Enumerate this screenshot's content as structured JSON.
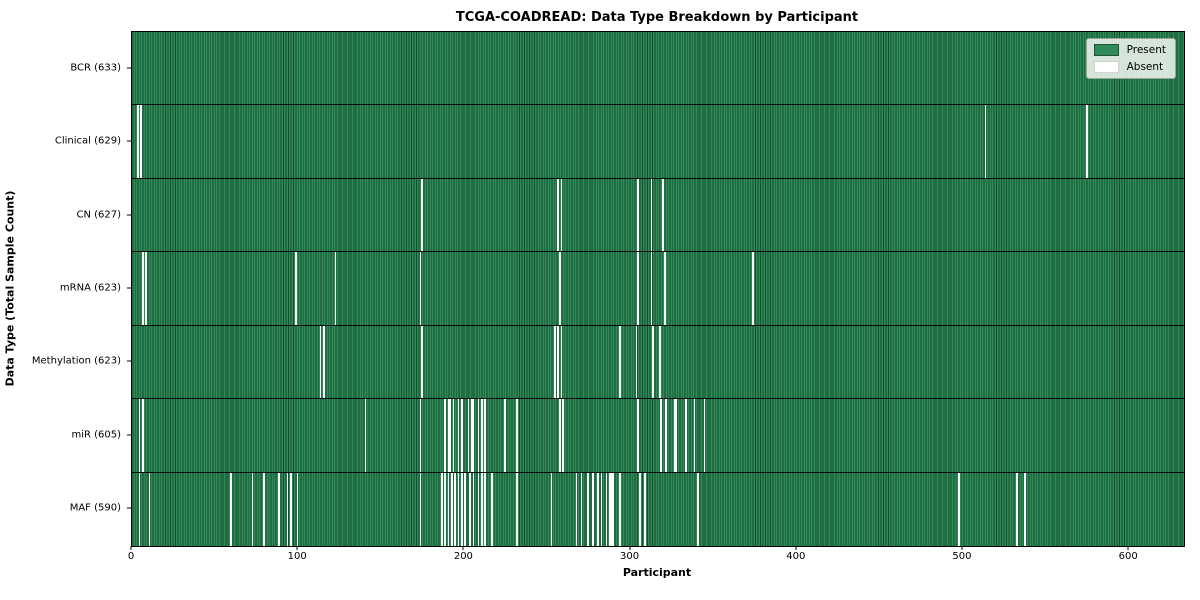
{
  "chart_data": {
    "type": "heatmap",
    "title": "TCGA-COADREAD: Data Type Breakdown by Participant",
    "xlabel": "Participant",
    "ylabel": "Data Type (Total Sample Count)",
    "n_participants": 633,
    "x_ticks": [
      0,
      100,
      200,
      300,
      400,
      500,
      600
    ],
    "grid": false,
    "legend": {
      "position": "upper right",
      "present_label": "Present",
      "absent_label": "Absent"
    },
    "colors": {
      "present": "#2E8B57",
      "absent": "#FFFFFF",
      "cell_edge": "#0A2616"
    },
    "rows": [
      {
        "name": "BCR",
        "label": "BCR (633)",
        "total_samples": 633,
        "absent_participants": []
      },
      {
        "name": "Clinical",
        "label": "Clinical (629)",
        "total_samples": 629,
        "absent_participants": [
          3,
          5,
          513,
          574
        ]
      },
      {
        "name": "CN",
        "label": "CN (627)",
        "total_samples": 627,
        "absent_participants": [
          174,
          256,
          258,
          304,
          312,
          319
        ]
      },
      {
        "name": "mRNA",
        "label": "mRNA (623)",
        "total_samples": 623,
        "absent_participants": [
          6,
          8,
          98,
          122,
          173,
          257,
          304,
          312,
          320,
          373
        ]
      },
      {
        "name": "Methylation",
        "label": "Methylation (623)",
        "total_samples": 623,
        "absent_participants": [
          113,
          115,
          174,
          254,
          256,
          258,
          293,
          303,
          313,
          317
        ]
      },
      {
        "name": "miR",
        "label": "miR (605)",
        "total_samples": 605,
        "absent_participants": [
          4,
          6,
          140,
          173,
          188,
          190,
          191,
          193,
          196,
          198,
          202,
          204,
          205,
          208,
          210,
          212,
          224,
          231,
          257,
          259,
          304,
          318,
          321,
          326,
          327,
          333,
          338,
          344
        ]
      },
      {
        "name": "MAF",
        "label": "MAF (590)",
        "total_samples": 590,
        "absent_participants": [
          4,
          10,
          59,
          72,
          79,
          88,
          93,
          95,
          99,
          173,
          186,
          188,
          190,
          192,
          194,
          196,
          198,
          200,
          203,
          205,
          208,
          210,
          212,
          216,
          231,
          252,
          267,
          270,
          274,
          277,
          280,
          282,
          285,
          287,
          288,
          289,
          293,
          305,
          308,
          340,
          497,
          532,
          537
        ]
      }
    ]
  }
}
